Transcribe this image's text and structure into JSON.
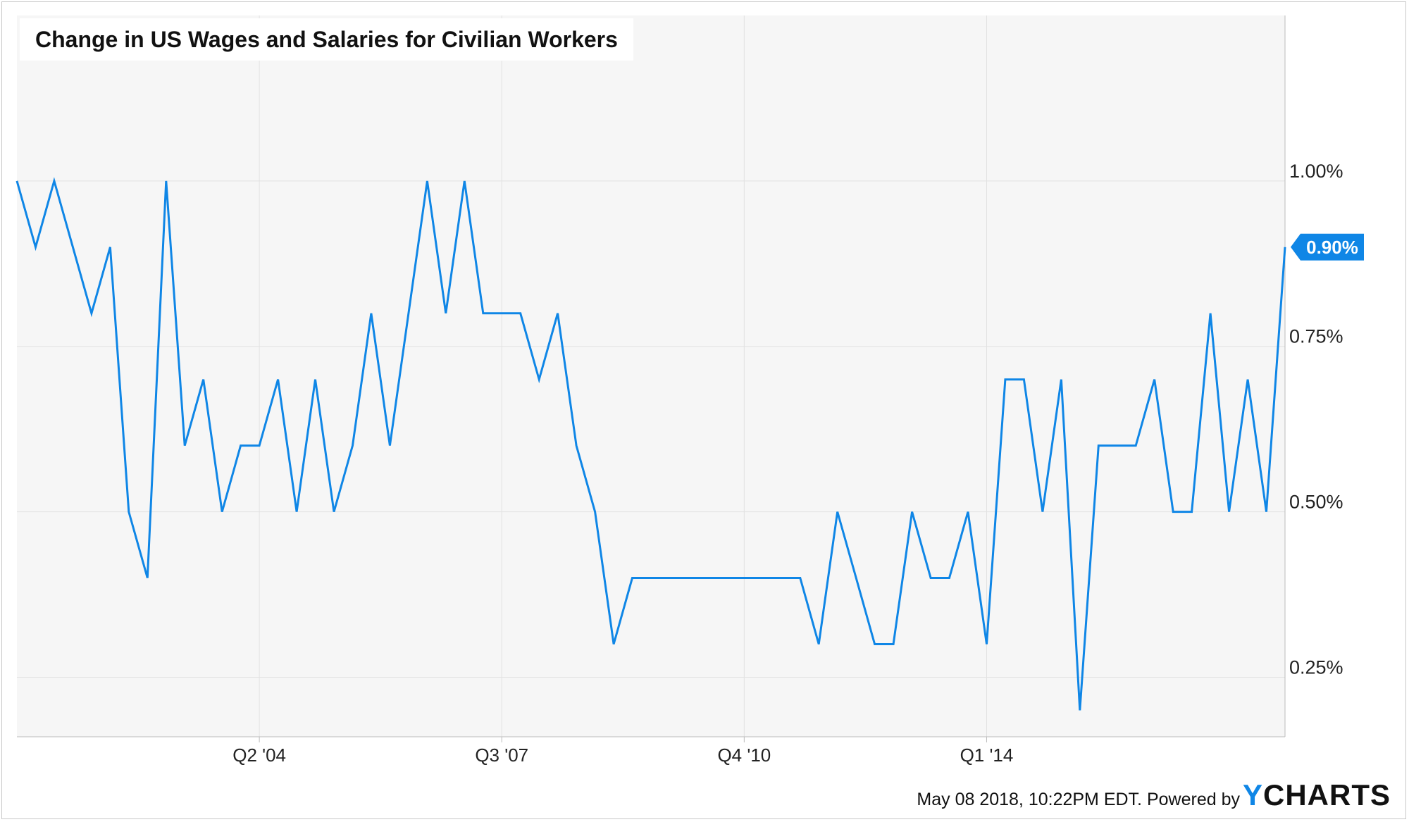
{
  "chart_data": {
    "type": "line",
    "title": "Change in US Wages and Salaries for Civilian Workers",
    "x_tick_labels": [
      "Q2 '04",
      "Q3 '07",
      "Q4 '10",
      "Q1 '14"
    ],
    "x_tick_index": [
      13,
      26,
      39,
      52
    ],
    "y_tick_labels": [
      "0.25%",
      "0.50%",
      "0.75%",
      "1.00%"
    ],
    "y_ticks": [
      0.25,
      0.5,
      0.75,
      1.0
    ],
    "ylim": [
      0.16,
      1.25
    ],
    "grid": true,
    "series": [
      {
        "color": "#0f86e6",
        "values": [
          1.0,
          0.9,
          1.0,
          0.9,
          0.8,
          0.9,
          0.5,
          0.4,
          1.0,
          0.6,
          0.7,
          0.5,
          0.6,
          0.6,
          0.7,
          0.5,
          0.7,
          0.5,
          0.6,
          0.8,
          0.6,
          0.8,
          1.0,
          0.8,
          1.0,
          0.8,
          0.8,
          0.8,
          0.7,
          0.8,
          0.6,
          0.5,
          0.3,
          0.4,
          0.4,
          0.4,
          0.4,
          0.4,
          0.4,
          0.4,
          0.4,
          0.4,
          0.4,
          0.3,
          0.5,
          0.4,
          0.3,
          0.3,
          0.5,
          0.4,
          0.4,
          0.5,
          0.3,
          0.7,
          0.7,
          0.5,
          0.7,
          0.2,
          0.6,
          0.6,
          0.6,
          0.7,
          0.5,
          0.5,
          0.8,
          0.5,
          0.7,
          0.5,
          0.9
        ]
      }
    ],
    "last_value_label": "0.90%"
  },
  "footer": {
    "text": "May 08 2018, 10:22PM EDT. Powered by",
    "brand_y": "Y",
    "brand_rest": "CHARTS"
  }
}
